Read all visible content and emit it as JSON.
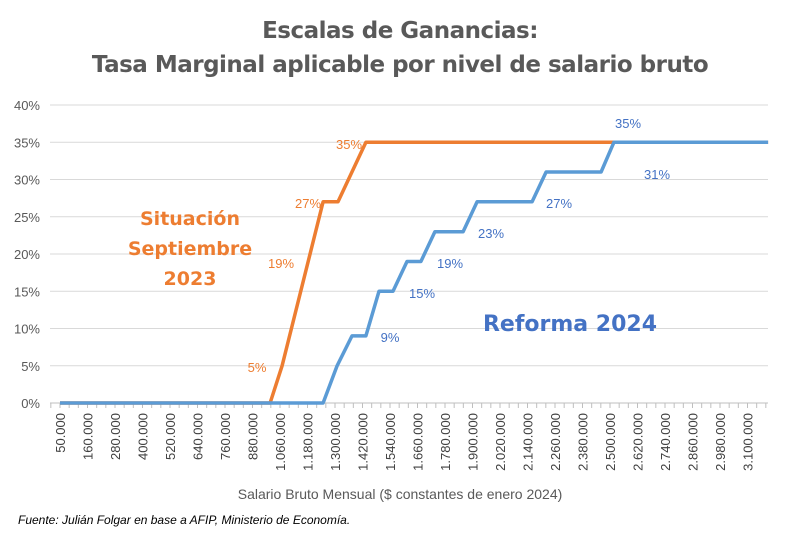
{
  "title_line1": "Escalas de Ganancias:",
  "title_line2": "Tasa Marginal aplicable por nivel de salario bruto",
  "footnote": "Fuente: Julián Folgar en base a AFIP, Ministerio de Economía.",
  "annotations": {
    "orange_line1": "Situación",
    "orange_line2": "Septiembre",
    "orange_line3": "2023",
    "blue": "Reforma 2024"
  },
  "chart_data": {
    "type": "line",
    "title": "Escalas de Ganancias: Tasa Marginal aplicable por nivel de salario bruto",
    "xlabel": "Salario Bruto Mensual ($ constantes de enero 2024)",
    "ylabel": "",
    "x_tick_labels": [
      "50.000",
      "160.000",
      "280.000",
      "400.000",
      "520.000",
      "640.000",
      "760.000",
      "880.000",
      "1.060.000",
      "1.180.000",
      "1.300.000",
      "1.420.000",
      "1.540.000",
      "1.660.000",
      "1.780.000",
      "1.900.000",
      "2.020.000",
      "2.140.000",
      "2.260.000",
      "2.380.000",
      "2.500.000",
      "2.620.000",
      "2.740.000",
      "2.860.000",
      "2.980.000",
      "3.100.000"
    ],
    "x_tick_values": [
      50000,
      160000,
      280000,
      400000,
      520000,
      640000,
      760000,
      880000,
      1060000,
      1180000,
      1300000,
      1420000,
      1540000,
      1660000,
      1780000,
      1900000,
      2020000,
      2140000,
      2260000,
      2380000,
      2500000,
      2620000,
      2740000,
      2860000,
      2980000,
      3100000
    ],
    "y_tick_labels": [
      "0%",
      "5%",
      "10%",
      "15%",
      "20%",
      "25%",
      "30%",
      "35%",
      "40%"
    ],
    "ylim": [
      0,
      40
    ],
    "grid": true,
    "legend": "none",
    "series": [
      {
        "color": "#ED7D31",
        "label_color": "#ED7D31",
        "points": [
          [
            50000,
            0
          ],
          [
            995000,
            0
          ],
          [
            1069000,
            5
          ],
          [
            1248000,
            27
          ],
          [
            1313000,
            27
          ],
          [
            1435000,
            35
          ],
          [
            3190000,
            35
          ]
        ],
        "data_labels": [
          "5%",
          "19%",
          "27%",
          "35%"
        ]
      },
      {
        "color": "#5B9BD5",
        "label_color": "#4472C4",
        "points": [
          [
            50000,
            0
          ],
          [
            1248000,
            0
          ],
          [
            1309000,
            5
          ],
          [
            1374000,
            9
          ],
          [
            1435000,
            9
          ],
          [
            1492000,
            15
          ],
          [
            1553000,
            15
          ],
          [
            1614000,
            19
          ],
          [
            1675000,
            19
          ],
          [
            1736000,
            23
          ],
          [
            1859000,
            23
          ],
          [
            1920000,
            27
          ],
          [
            2160000,
            27
          ],
          [
            2221000,
            31
          ],
          [
            2461000,
            31
          ],
          [
            2517000,
            35
          ],
          [
            3190000,
            35
          ]
        ],
        "data_labels": [
          "9%",
          "15%",
          "19%",
          "23%",
          "27%",
          "31%",
          "35%"
        ]
      }
    ]
  }
}
